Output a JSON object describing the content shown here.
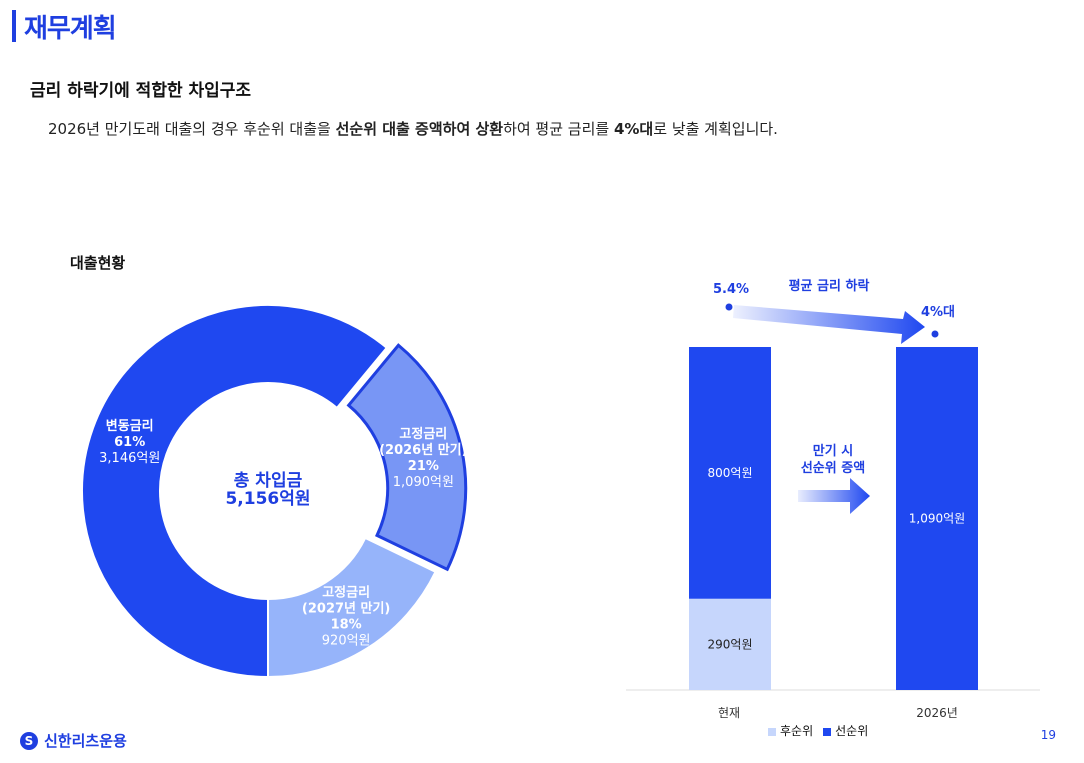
{
  "header": {
    "title": "재무계획",
    "subtitle": "금리 하락기에 적합한 차입구조",
    "summary_parts": {
      "p1": "2026년 만기도래 대출의 경우 후순위 대출을 ",
      "b1": "선순위 대출 증액하여 상환",
      "p2": "하여 평균 금리를 ",
      "b2": "4%대",
      "p3": "로 낮출 계획입니다."
    }
  },
  "donut_section": {
    "label": "대출현황",
    "center_line1": "총 차입금",
    "center_line2": "5,156억원"
  },
  "colors": {
    "brand": "#1f3fe0",
    "variable": "#1f48f0",
    "fixed_2026": "#7896f5",
    "fixed_2027": "#96b4fa",
    "senior": "#1f48f0",
    "subordinate": "#c6d6fc"
  },
  "chart_data": [
    {
      "type": "pie",
      "title": "대출현황",
      "slices": [
        {
          "name": "변동금리",
          "percent": "61%",
          "amount": "3,146억원",
          "value": 3146
        },
        {
          "name": "고정금리",
          "sub": "(2026년 만기)",
          "percent": "21%",
          "amount": "1,090억원",
          "value": 1090
        },
        {
          "name": "고정금리",
          "sub": "(2027년 만기)",
          "percent": "18%",
          "amount": "920억원",
          "value": 920
        }
      ]
    },
    {
      "type": "bar",
      "categories": [
        "현재",
        "2026년"
      ],
      "series": [
        {
          "name": "후순위",
          "values": [
            290,
            0
          ],
          "labels": [
            "290억원",
            ""
          ]
        },
        {
          "name": "선순위",
          "values": [
            800,
            1090
          ],
          "labels": [
            "800억원",
            "1,090억원"
          ]
        }
      ],
      "annotations": {
        "rate_before": "5.4%",
        "rate_after": "4%대",
        "rate_caption": "평균 금리 하락",
        "arrow_caption_line1": "만기 시",
        "arrow_caption_line2": "선순위 증액"
      }
    }
  ],
  "legend": {
    "subordinate": "후순위",
    "senior": "선순위"
  },
  "footer": {
    "logo_text": "신한리츠운용",
    "logo_mark": "S",
    "page_number": "19"
  }
}
